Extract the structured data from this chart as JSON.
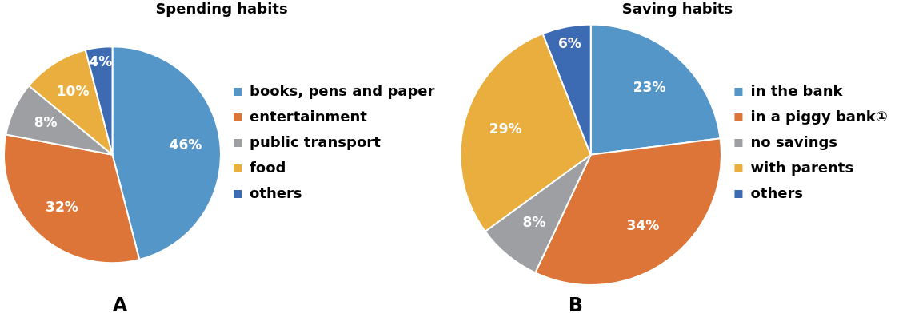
{
  "chart_data": [
    {
      "type": "pie",
      "title": "Spending habits",
      "categories": [
        "books, pens and paper",
        "entertainment",
        "public transport",
        "food",
        "others"
      ],
      "values": [
        46,
        32,
        8,
        10,
        4
      ],
      "value_labels": [
        "46%",
        "32%",
        "8%",
        "10%",
        "4%"
      ],
      "colors": [
        "#5596c8",
        "#dc7537",
        "#9d9fa2",
        "#e9ae3d",
        "#3d6bb3"
      ],
      "legend": "right",
      "annotations": [
        "A"
      ]
    },
    {
      "type": "pie",
      "title": "Saving habits",
      "categories": [
        "in the bank",
        "in a piggy bank①",
        "no savings",
        "with parents",
        "others"
      ],
      "values": [
        23,
        34,
        8,
        29,
        6
      ],
      "value_labels": [
        "23%",
        "34%",
        "8%",
        "29%",
        "6%"
      ],
      "colors": [
        "#5596c8",
        "#dc7537",
        "#9d9fa2",
        "#e9ae3d",
        "#3d6bb3"
      ],
      "legend": "right",
      "annotations": [
        "B"
      ]
    }
  ]
}
